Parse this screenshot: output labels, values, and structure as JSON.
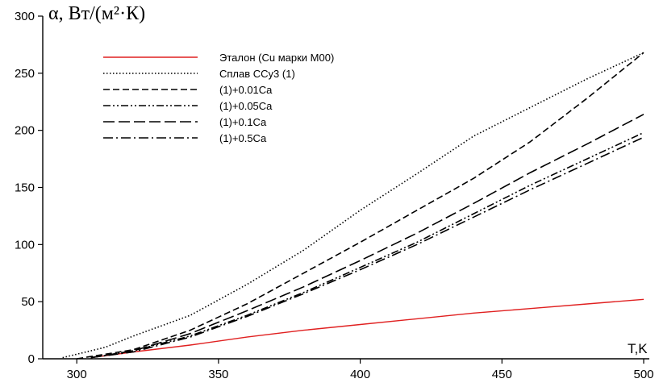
{
  "chart_data": {
    "type": "line",
    "title": "",
    "ylabel": "α, Вт/(м²·К)",
    "xlabel": "T,K",
    "xlim": [
      288,
      500
    ],
    "ylim": [
      0,
      300
    ],
    "x_ticks": [
      300,
      350,
      400,
      450,
      500
    ],
    "y_ticks": [
      0,
      50,
      100,
      150,
      200,
      250,
      300
    ],
    "grid": false,
    "legend_position": "top-left",
    "series": [
      {
        "name": "Эталон (Cu марки M00)",
        "color": "#e02020",
        "dash": "solid",
        "x": [
          305,
          320,
          340,
          360,
          380,
          400,
          420,
          440,
          460,
          480,
          500
        ],
        "y": [
          1,
          6,
          12,
          19,
          25,
          30,
          35,
          40,
          44,
          48,
          52
        ]
      },
      {
        "name": "Сплав ССу3 (1)",
        "color": "#000000",
        "dash": "dotted",
        "x": [
          295,
          310,
          320,
          340,
          360,
          380,
          400,
          420,
          440,
          460,
          480,
          500
        ],
        "y": [
          1,
          10,
          20,
          38,
          65,
          95,
          130,
          162,
          195,
          220,
          245,
          268
        ]
      },
      {
        "name": "(1)+0.01Ca",
        "color": "#000000",
        "dash": "short-dash",
        "x": [
          300,
          320,
          340,
          360,
          380,
          400,
          420,
          440,
          460,
          480,
          500
        ],
        "y": [
          0,
          8,
          25,
          48,
          75,
          102,
          130,
          158,
          190,
          228,
          268
        ]
      },
      {
        "name": "(1)+0.05Ca",
        "color": "#000000",
        "dash": "dash-dot-dot",
        "x": [
          305,
          320,
          340,
          360,
          380,
          400,
          420,
          440,
          460,
          480,
          500
        ],
        "y": [
          1,
          7,
          20,
          38,
          58,
          80,
          102,
          127,
          152,
          175,
          198
        ]
      },
      {
        "name": "(1)+0.1Ca",
        "color": "#000000",
        "dash": "long-dash",
        "x": [
          305,
          320,
          340,
          360,
          380,
          400,
          420,
          440,
          460,
          480,
          500
        ],
        "y": [
          1,
          7,
          22,
          42,
          63,
          86,
          110,
          136,
          163,
          188,
          214
        ]
      },
      {
        "name": "(1)+0.5Ca",
        "color": "#000000",
        "dash": "dash-dot",
        "x": [
          305,
          320,
          340,
          360,
          380,
          400,
          420,
          440,
          460,
          480,
          500
        ],
        "y": [
          1,
          6,
          19,
          37,
          57,
          78,
          100,
          124,
          148,
          171,
          194
        ]
      }
    ]
  }
}
